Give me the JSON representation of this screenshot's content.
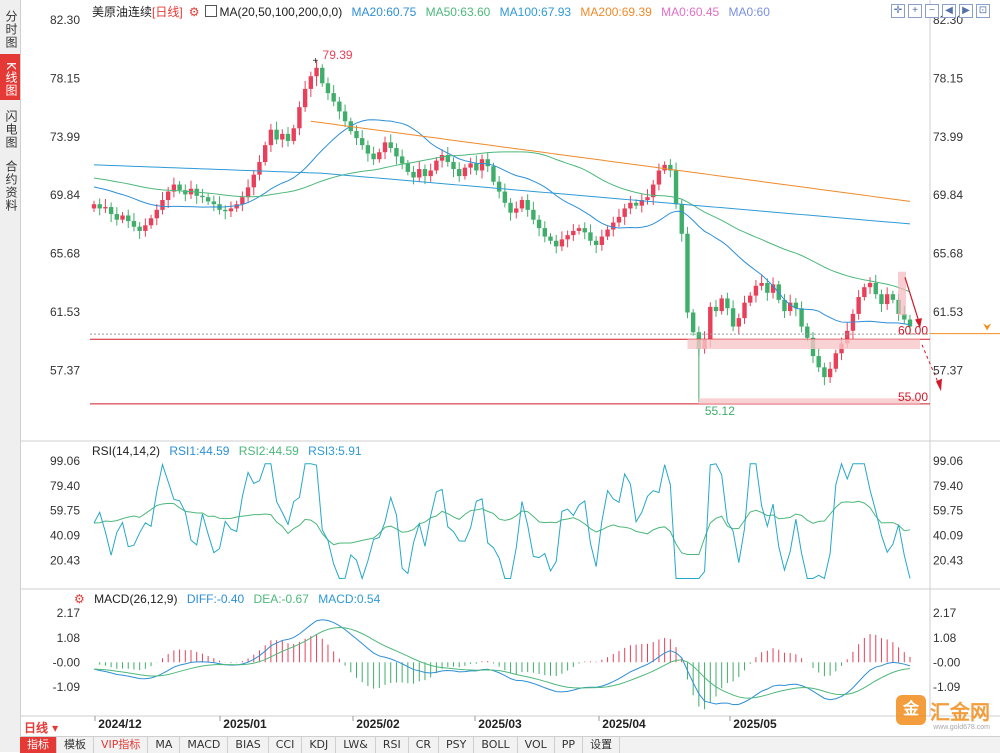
{
  "sidebar": {
    "tabs": [
      {
        "label": "分时图",
        "active": false
      },
      {
        "label": "K线图",
        "active": true
      },
      {
        "label": "闪电图",
        "active": false
      },
      {
        "label": "合约资料",
        "active": false
      }
    ]
  },
  "main_legend": {
    "symbol": "美原油连续",
    "period": "[日线]",
    "ma_params": "MA(20,50,100,200,0,0)",
    "ma20": "MA20:60.75",
    "ma50": "MA50:63.60",
    "ma100": "MA100:67.93",
    "ma200": "MA200:69.39",
    "ma0a": "MA0:60.45",
    "ma0b": "MA0:60"
  },
  "rsi_legend": {
    "params": "RSI(14,14,2)",
    "rsi1": "RSI1:44.59",
    "rsi2": "RSI2:44.59",
    "rsi3": "RSI3:5.91"
  },
  "macd_legend": {
    "params": "MACD(26,12,9)",
    "diff": "DIFF:-0.40",
    "dea": "DEA:-0.67",
    "macd": "MACD:0.54"
  },
  "toolbar": {
    "icons": [
      "expand-icon",
      "zoom-in-icon",
      "zoom-out-icon",
      "left-icon",
      "right-icon",
      "fit-icon"
    ]
  },
  "colors": {
    "up": "#e8405a",
    "down": "#3fae6a",
    "ma20": "#2d8fd6",
    "ma50": "#4cb87a",
    "ma100": "#2e9ad6",
    "ma200": "#f08a2a",
    "ma0a": "#e26fc7",
    "ma0b": "#7b8fe0",
    "support": "#d11a2a",
    "price_line": "#f28c1b"
  },
  "chart_data": [
    {
      "type": "candlestick",
      "title": "美原油连续 [日线]",
      "y_ticks": [
        "82.30",
        "78.15",
        "73.99",
        "69.84",
        "65.68",
        "61.53",
        "57.37"
      ],
      "ylim": [
        53.5,
        82.3
      ],
      "x_ticks": [
        "2024/12",
        "2025/01",
        "2025/02",
        "2025/03",
        "2025/04",
        "2025/05"
      ],
      "annotations": {
        "high": "79.39",
        "low": "55.12",
        "level1": "60.00",
        "level2": "55.00"
      },
      "current_price": 60.0,
      "close_path": [
        69.2,
        68.9,
        69.0,
        68.5,
        68.1,
        68.4,
        68.0,
        67.6,
        67.3,
        67.7,
        68.2,
        68.8,
        69.5,
        70.1,
        70.6,
        70.2,
        69.9,
        70.3,
        69.8,
        69.7,
        69.4,
        69.2,
        68.8,
        68.7,
        68.9,
        69.2,
        69.7,
        70.4,
        71.3,
        72.2,
        73.4,
        74.5,
        73.8,
        74.2,
        73.7,
        74.6,
        76.1,
        77.4,
        78.3,
        78.9,
        77.8,
        77.1,
        76.5,
        75.8,
        75.1,
        74.4,
        73.9,
        73.4,
        72.8,
        72.4,
        72.9,
        73.6,
        73.2,
        72.6,
        72.1,
        71.5,
        71.1,
        71.7,
        71.2,
        71.6,
        72.3,
        72.7,
        72.2,
        71.7,
        71.2,
        71.8,
        72.1,
        71.6,
        72.4,
        71.9,
        70.8,
        70.1,
        69.3,
        68.6,
        68.9,
        69.5,
        68.8,
        68.1,
        67.5,
        66.9,
        66.6,
        66.2,
        66.7,
        67.0,
        67.3,
        67.5,
        67.2,
        66.6,
        66.3,
        66.9,
        67.4,
        67.9,
        68.3,
        68.9,
        69.3,
        69.1,
        69.5,
        69.7,
        70.6,
        71.6,
        72.0,
        71.6,
        69.2,
        67.1,
        61.5,
        60.1,
        58.9,
        59.6,
        61.9,
        61.6,
        62.5,
        61.8,
        60.5,
        61.1,
        62.2,
        62.7,
        63.4,
        63.6,
        62.9,
        63.5,
        62.4,
        61.6,
        62.2,
        61.8,
        60.5,
        59.7,
        58.4,
        57.6,
        56.9,
        57.5,
        58.6,
        59.3,
        60.2,
        61.4,
        62.6,
        63.3,
        63.6,
        62.8,
        62.1,
        62.8,
        62.4,
        61.4,
        61.0,
        60.5
      ],
      "indicators": [
        "MA20",
        "MA50",
        "MA100",
        "MA200"
      ]
    },
    {
      "type": "line",
      "title": "RSI(14,14,2)",
      "y_ticks": [
        "99.06",
        "79.40",
        "59.75",
        "40.09",
        "20.43"
      ],
      "ylim": [
        0,
        100
      ],
      "series": [
        {
          "name": "RSI1",
          "values": [
            44.59
          ]
        },
        {
          "name": "RSI2",
          "values": [
            44.59
          ]
        },
        {
          "name": "RSI3",
          "values": [
            5.91
          ]
        }
      ]
    },
    {
      "type": "bar",
      "title": "MACD(26,12,9)",
      "y_ticks": [
        "2.17",
        "1.08",
        "-0.00",
        "-1.09"
      ],
      "ylim": [
        -2.2,
        2.4
      ],
      "series": [
        {
          "name": "DIFF",
          "values": [
            -0.4
          ]
        },
        {
          "name": "DEA",
          "values": [
            -0.67
          ]
        },
        {
          "name": "MACD",
          "values": [
            0.54
          ]
        }
      ]
    }
  ]
}
